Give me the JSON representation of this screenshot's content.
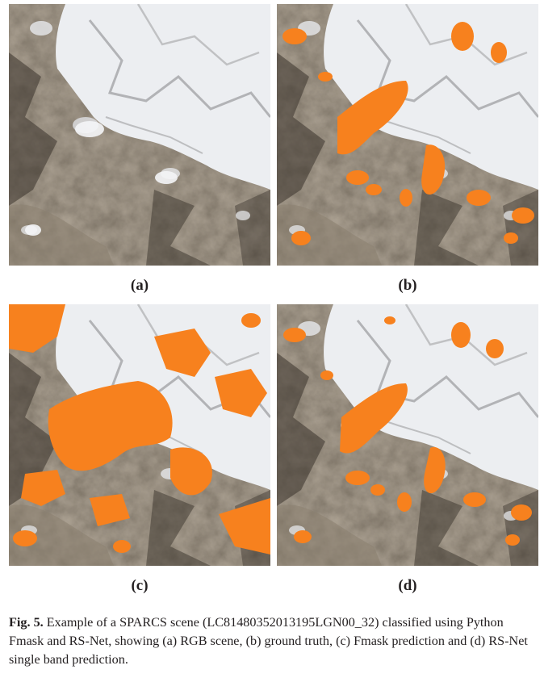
{
  "figure": {
    "panels": [
      {
        "id": "a",
        "label": "(a)",
        "content": "RGB scene"
      },
      {
        "id": "b",
        "label": "(b)",
        "content": "ground truth"
      },
      {
        "id": "c",
        "label": "(c)",
        "content": "Fmask prediction"
      },
      {
        "id": "d",
        "label": "(d)",
        "content": "RS-Net single band prediction"
      }
    ],
    "caption": {
      "lead": "Fig. 5.",
      "text": " Example of a SPARCS scene (LC81480352013195LGN00_32) classified using Python Fmask and RS-Net, showing (a) RGB scene, (b) ground truth, (c) Fmask prediction and (d) RS-Net single band prediction."
    }
  },
  "colors": {
    "terrain": "#5e5448",
    "terrain_dark": "#3a332c",
    "terrain_light": "#7d7264",
    "snow": "#f1f2f4",
    "cloud_mask": "#f7811e"
  }
}
